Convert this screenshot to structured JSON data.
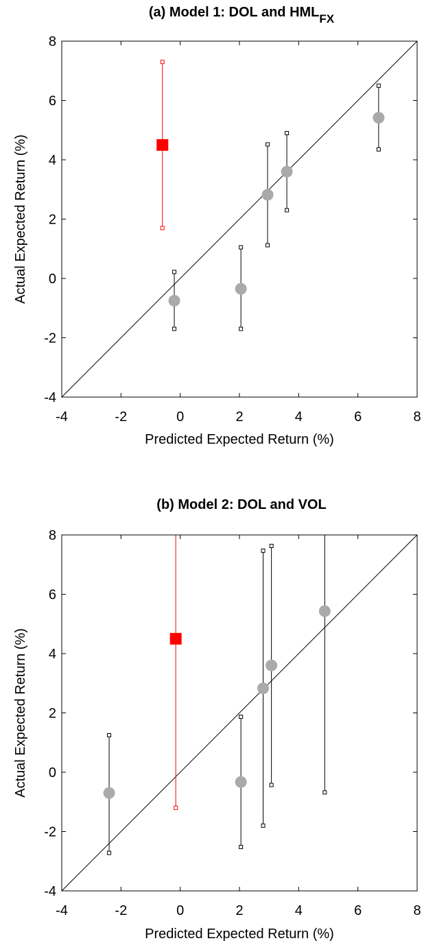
{
  "chart_data": [
    {
      "type": "scatter",
      "title": "(a) Model 1: DOL and HML",
      "title_subscript": "FX",
      "xlabel": "Predicted Expected Return (%)",
      "ylabel": "Actual Expected Return (%)",
      "xlim": [
        -4,
        8
      ],
      "ylim": [
        -4,
        8
      ],
      "xticks": [
        "-4",
        "-2",
        "0",
        "2",
        "4",
        "6",
        "8"
      ],
      "yticks": [
        "-4",
        "-2",
        "0",
        "2",
        "4",
        "6",
        "8"
      ],
      "grid": false,
      "diagonal_line": true,
      "colors": {
        "highlight": "#ff0000",
        "points": "#aaaaaa",
        "bars": "#000000"
      },
      "points": [
        {
          "x": -0.6,
          "y": 4.5,
          "lo": 1.7,
          "hi": 7.3,
          "highlight": true
        },
        {
          "x": -0.2,
          "y": -0.75,
          "lo": -1.7,
          "hi": 0.22,
          "highlight": false
        },
        {
          "x": 2.05,
          "y": -0.35,
          "lo": -1.7,
          "hi": 1.05,
          "highlight": false
        },
        {
          "x": 2.95,
          "y": 2.82,
          "lo": 1.12,
          "hi": 4.52,
          "highlight": false
        },
        {
          "x": 3.6,
          "y": 3.6,
          "lo": 2.3,
          "hi": 4.9,
          "highlight": false
        },
        {
          "x": 6.7,
          "y": 5.42,
          "lo": 4.35,
          "hi": 6.5,
          "highlight": false
        }
      ]
    },
    {
      "type": "scatter",
      "title": "(b) Model 2: DOL and VOL",
      "title_subscript": "",
      "xlabel": "Predicted Expected Return (%)",
      "ylabel": "Actual Expected Return (%)",
      "xlim": [
        -4,
        8
      ],
      "ylim": [
        -4,
        8
      ],
      "xticks": [
        "-4",
        "-2",
        "0",
        "2",
        "4",
        "6",
        "8"
      ],
      "yticks": [
        "-4",
        "-2",
        "0",
        "2",
        "4",
        "6",
        "8"
      ],
      "grid": false,
      "diagonal_line": true,
      "colors": {
        "highlight": "#ff0000",
        "points": "#aaaaaa",
        "bars": "#000000"
      },
      "points": [
        {
          "x": -2.4,
          "y": -0.7,
          "lo": -2.72,
          "hi": 1.25,
          "highlight": false
        },
        {
          "x": -0.15,
          "y": 4.5,
          "lo": -1.2,
          "hi": 10.2,
          "highlight": true
        },
        {
          "x": 2.05,
          "y": -0.33,
          "lo": -2.52,
          "hi": 1.87,
          "highlight": false
        },
        {
          "x": 2.8,
          "y": 2.83,
          "lo": -1.8,
          "hi": 7.47,
          "highlight": false
        },
        {
          "x": 3.08,
          "y": 3.6,
          "lo": -0.43,
          "hi": 7.63,
          "highlight": false
        },
        {
          "x": 4.88,
          "y": 5.43,
          "lo": -0.68,
          "hi": 11.5,
          "highlight": false
        }
      ]
    }
  ]
}
